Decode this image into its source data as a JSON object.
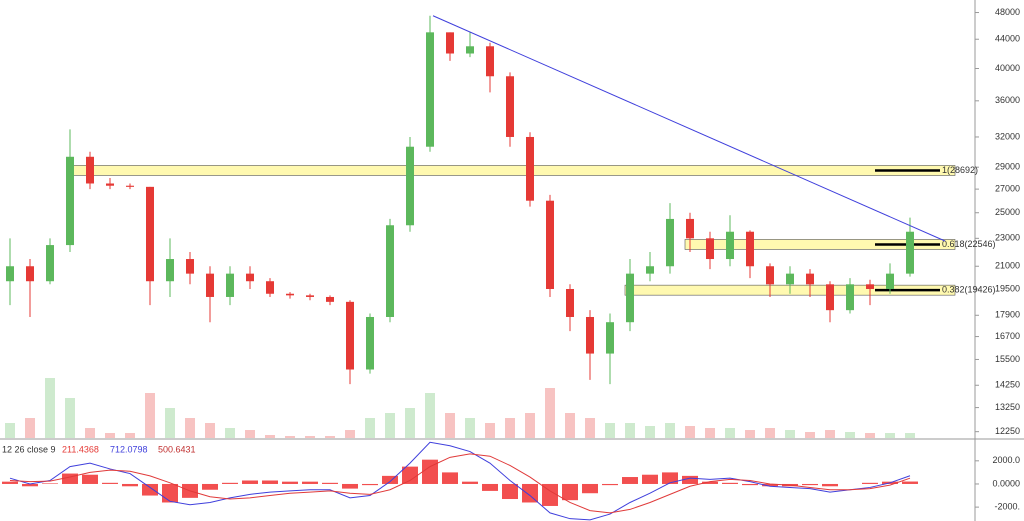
{
  "chart_data": {
    "type": "candlestick",
    "log": true,
    "ylim": [
      12000,
      50000
    ],
    "yticks": [
      48000,
      44000,
      40000,
      36000,
      32000,
      29000,
      27000,
      25000,
      23000,
      21000,
      19500,
      17900,
      16700,
      15500,
      14250,
      13250,
      12250
    ],
    "up_color": "#5cb85c",
    "down_color": "#e53935",
    "open": [
      20000,
      21000,
      20000,
      22500,
      30000,
      27500,
      27300,
      27200,
      20000,
      21500,
      20500,
      19000,
      20500,
      20000,
      19200,
      19100,
      19000,
      18700,
      15000,
      17800,
      24000,
      31000,
      45000,
      42000,
      43000,
      39000,
      32000,
      26000,
      19500,
      17800,
      15800,
      17500,
      20500,
      21000,
      24500,
      23000,
      21500,
      23500,
      21000,
      19800,
      20500,
      19800,
      18200,
      19800,
      19500,
      20500
    ],
    "high": [
      23000,
      21500,
      23000,
      32800,
      30500,
      28000,
      27500,
      27200,
      23000,
      22000,
      21000,
      21000,
      21000,
      20200,
      19300,
      19200,
      19100,
      18800,
      18000,
      24500,
      32000,
      47500,
      45000,
      45000,
      43500,
      39500,
      32500,
      26500,
      19800,
      18200,
      18000,
      21500,
      22000,
      25800,
      25000,
      23500,
      24800,
      23600,
      21200,
      21000,
      20800,
      20000,
      20200,
      20100,
      21200,
      24600
    ],
    "low": [
      18500,
      17800,
      19800,
      22000,
      27000,
      27000,
      27000,
      18500,
      19000,
      19800,
      17500,
      18500,
      19500,
      19000,
      18900,
      18800,
      18500,
      14300,
      14800,
      17500,
      23500,
      30500,
      41000,
      41500,
      37000,
      31000,
      25500,
      19000,
      17000,
      14500,
      14300,
      17000,
      20000,
      20500,
      22000,
      20800,
      21000,
      20200,
      19000,
      19200,
      19000,
      17500,
      18000,
      18500,
      19200,
      20300
    ],
    "close": [
      21000,
      20000,
      22500,
      30000,
      27500,
      27300,
      27200,
      20000,
      21500,
      20500,
      19000,
      20500,
      20000,
      19200,
      19100,
      19000,
      18700,
      15000,
      17800,
      24000,
      31000,
      45000,
      42000,
      43000,
      39000,
      32000,
      26000,
      19500,
      17800,
      15800,
      17500,
      20500,
      21000,
      24500,
      23000,
      21500,
      23500,
      21000,
      19800,
      20500,
      19800,
      18200,
      19800,
      19500,
      20500,
      23500
    ],
    "volume": {
      "axis": "y3",
      "y3lim": [
        0,
        100
      ],
      "values": [
        15,
        20,
        60,
        40,
        10,
        5,
        5,
        45,
        30,
        20,
        15,
        10,
        8,
        3,
        2,
        2,
        2,
        8,
        20,
        25,
        30,
        45,
        25,
        20,
        15,
        20,
        25,
        50,
        25,
        20,
        15,
        15,
        12,
        15,
        12,
        10,
        10,
        8,
        10,
        8,
        6,
        8,
        6,
        5,
        5,
        5
      ]
    },
    "fib_levels": [
      {
        "label": "1(28692)",
        "value": 28692,
        "color": "#fff9b0"
      },
      {
        "label": "0.618(22546)",
        "value": 22546,
        "color": "#fff9b0"
      },
      {
        "label": "0.382(19426)",
        "value": 19426,
        "color": "#fff9b0"
      }
    ],
    "trendline": {
      "color": "#3f3fdc",
      "values": [
        47500,
        22800
      ]
    },
    "macd": {
      "label": "12 26 close 9",
      "y2lim": [
        -3200,
        3800
      ],
      "y2ticks": [
        {
          "value": 2000,
          "label": "2000.0"
        },
        {
          "value": 0,
          "label": "0.0000"
        },
        {
          "value": -2000,
          "label": "-2000."
        }
      ],
      "hist": {
        "color": "#f03030",
        "values": [
          200,
          -200,
          50,
          900,
          800,
          100,
          -200,
          -1000,
          -1600,
          -1200,
          -500,
          100,
          300,
          300,
          200,
          200,
          100,
          -400,
          -100,
          700,
          1500,
          2100,
          1000,
          200,
          -600,
          -1300,
          -1600,
          -1900,
          -1400,
          -800,
          -100,
          600,
          800,
          1000,
          700,
          200,
          100,
          -100,
          -200,
          -200,
          -100,
          -200,
          0,
          100,
          200,
          211.4368
        ]
      },
      "dif": {
        "color": "#3f3fdc",
        "values": [
          500,
          0,
          300,
          1500,
          1800,
          1300,
          900,
          -300,
          -1500,
          -1800,
          -1600,
          -1200,
          -900,
          -700,
          -600,
          -500,
          -500,
          -1200,
          -1000,
          200,
          1800,
          3600,
          3300,
          2800,
          1800,
          300,
          -1000,
          -2500,
          -3000,
          -3100,
          -2600,
          -1600,
          -800,
          100,
          500,
          400,
          500,
          200,
          -200,
          -300,
          -400,
          -700,
          -500,
          -300,
          100,
          712.0798
        ]
      },
      "dea": {
        "color": "#e03a3a",
        "values": [
          300,
          200,
          250,
          600,
          1000,
          1200,
          1100,
          700,
          100,
          -600,
          -1100,
          -1300,
          -1200,
          -1000,
          -800,
          -700,
          -600,
          -800,
          -900,
          -500,
          300,
          1500,
          2300,
          2600,
          2400,
          1600,
          600,
          -600,
          -1600,
          -2300,
          -2500,
          -2200,
          -1600,
          -900,
          -200,
          200,
          400,
          300,
          0,
          -100,
          -300,
          -500,
          -500,
          -400,
          -100,
          500.6431
        ]
      }
    }
  }
}
